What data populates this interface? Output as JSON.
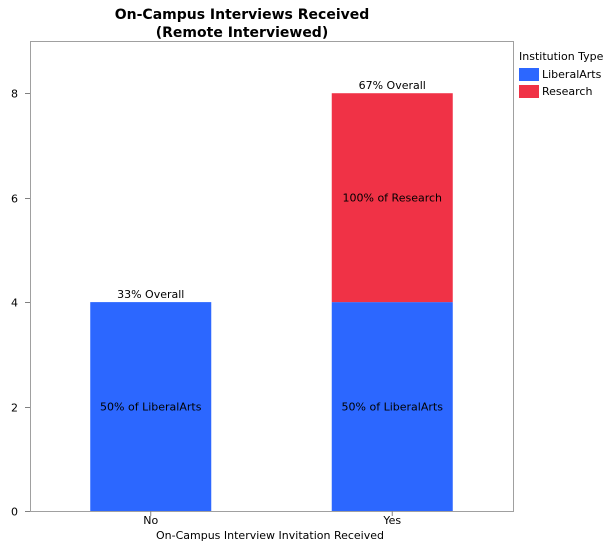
{
  "chart_data": {
    "type": "bar",
    "stacked": true,
    "title": "On-Campus Interviews Received",
    "subtitle": "(Remote Interviewed)",
    "xlabel": "On-Campus Interview Invitation Received",
    "ylabel": "",
    "ylim": [
      0,
      9
    ],
    "yticks": [
      0,
      2,
      4,
      6,
      8
    ],
    "categories": [
      "No",
      "Yes"
    ],
    "series": [
      {
        "name": "LiberalArts",
        "color": "#2c67ff",
        "values": [
          4,
          4
        ],
        "labels": [
          "50% of LiberalArts",
          "50% of LiberalArts"
        ]
      },
      {
        "name": "Research",
        "color": "#f03246",
        "values": [
          0,
          4
        ],
        "labels": [
          "",
          "100% of Research"
        ]
      }
    ],
    "totals_labels": [
      "33% Overall",
      "67% Overall"
    ],
    "legend": {
      "title": "Institution Type",
      "placement": "right"
    },
    "grid": false
  }
}
